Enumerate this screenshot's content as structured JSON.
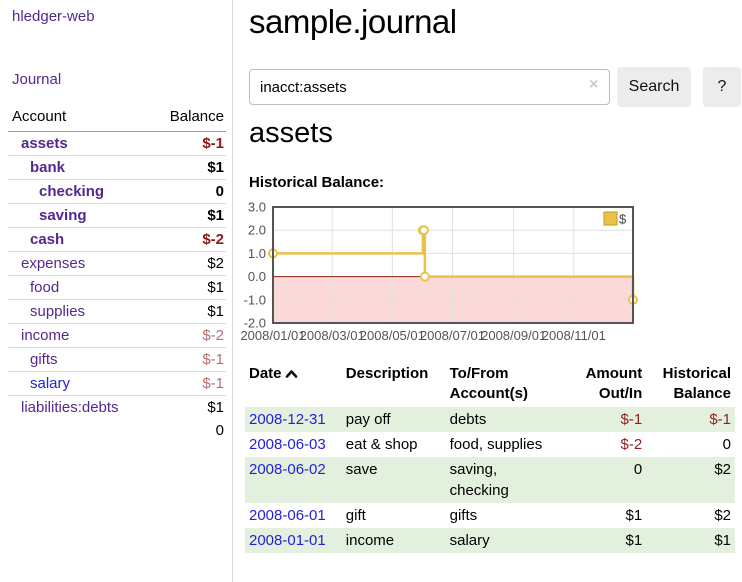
{
  "app": {
    "title": "hledger-web",
    "nav_journal": "Journal"
  },
  "sidebar": {
    "accounts_header": {
      "account": "Account",
      "balance": "Balance"
    },
    "accounts": [
      {
        "name": "assets",
        "depth": 1,
        "bold": true,
        "balance": "$-1",
        "neg": "strong"
      },
      {
        "name": "bank",
        "depth": 2,
        "bold": true,
        "balance": "$1",
        "neg": "none"
      },
      {
        "name": "checking",
        "depth": 3,
        "bold": true,
        "balance": "0",
        "neg": "none"
      },
      {
        "name": "saving",
        "depth": 3,
        "bold": true,
        "balance": "$1",
        "neg": "none"
      },
      {
        "name": "cash",
        "depth": 2,
        "bold": true,
        "balance": "$-2",
        "neg": "strong"
      },
      {
        "name": "expenses",
        "depth": 1,
        "bold": false,
        "balance": "$2",
        "neg": "none"
      },
      {
        "name": "food",
        "depth": 2,
        "bold": false,
        "balance": "$1",
        "neg": "none"
      },
      {
        "name": "supplies",
        "depth": 2,
        "bold": false,
        "balance": "$1",
        "neg": "none"
      },
      {
        "name": "income",
        "depth": 1,
        "bold": false,
        "balance": "$-2",
        "neg": "soft"
      },
      {
        "name": "gifts",
        "depth": 2,
        "bold": false,
        "balance": "$-1",
        "neg": "soft"
      },
      {
        "name": "salary",
        "depth": 2,
        "bold": false,
        "balance": "$-1",
        "neg": "soft",
        "unvisited": true
      },
      {
        "name": "liabilities:debts",
        "depth": 1,
        "bold": false,
        "balance": "$1",
        "neg": "none"
      }
    ],
    "total": "0"
  },
  "header": {
    "title": "sample.journal"
  },
  "search": {
    "value": "inacct:assets",
    "clear_icon": "×",
    "button": "Search",
    "help_button": "?"
  },
  "account_page": {
    "title": "assets",
    "chart_title": "Historical Balance:"
  },
  "chart_data": {
    "type": "line",
    "step": true,
    "title": "Historical Balance:",
    "legend": "$",
    "x": [
      "2008-01-01",
      "2008-06-01",
      "2008-06-02",
      "2008-06-03",
      "2008-12-31"
    ],
    "y": [
      1,
      2,
      2,
      0,
      -1
    ],
    "xlim": [
      "2008-01-01",
      "2008-12-31"
    ],
    "ylim": [
      -2,
      3
    ],
    "x_ticks": [
      "2008/01/01",
      "2008/03/01",
      "2008/05/01",
      "2008/07/01",
      "2008/09/01",
      "2008/11/01"
    ],
    "y_ticks": [
      3.0,
      2.0,
      1.0,
      0.0,
      -1.0,
      -2.0
    ],
    "colors": {
      "line": "#e8c24a",
      "legend_border": "#c09c1e",
      "negative_fill": "#fbd9d9",
      "zero_line": "#8b1a1a",
      "grid": "#e0e0e0",
      "border": "#545454",
      "axis": "#545454"
    }
  },
  "register": {
    "columns": [
      {
        "label": "Date",
        "sort": true,
        "align": "left",
        "cls": "c-date"
      },
      {
        "label": "Description",
        "align": "left",
        "cls": "c-desc"
      },
      {
        "label": "To/From Account(s)",
        "align": "left",
        "cls": "c-acct"
      },
      {
        "label": "Amount Out/In",
        "align": "right",
        "cls": "c-amt"
      },
      {
        "label": "Historical Balance",
        "align": "right",
        "cls": "c-bal"
      }
    ],
    "rows": [
      {
        "date": "2008-12-31",
        "description": "pay off",
        "accounts": "debts",
        "amount": "$-1",
        "amount_neg": true,
        "balance": "$-1",
        "balance_neg": true
      },
      {
        "date": "2008-06-03",
        "description": "eat & shop",
        "accounts": "food, supplies",
        "amount": "$-2",
        "amount_neg": true,
        "balance": "0",
        "balance_neg": false
      },
      {
        "date": "2008-06-02",
        "description": "save",
        "accounts": "saving, checking",
        "amount": "0",
        "amount_neg": false,
        "balance": "$2",
        "balance_neg": false
      },
      {
        "date": "2008-06-01",
        "description": "gift",
        "accounts": "gifts",
        "amount": "$1",
        "amount_neg": false,
        "balance": "$2",
        "balance_neg": false
      },
      {
        "date": "2008-01-01",
        "description": "income",
        "accounts": "salary",
        "amount": "$1",
        "amount_neg": false,
        "balance": "$1",
        "balance_neg": false
      }
    ]
  }
}
